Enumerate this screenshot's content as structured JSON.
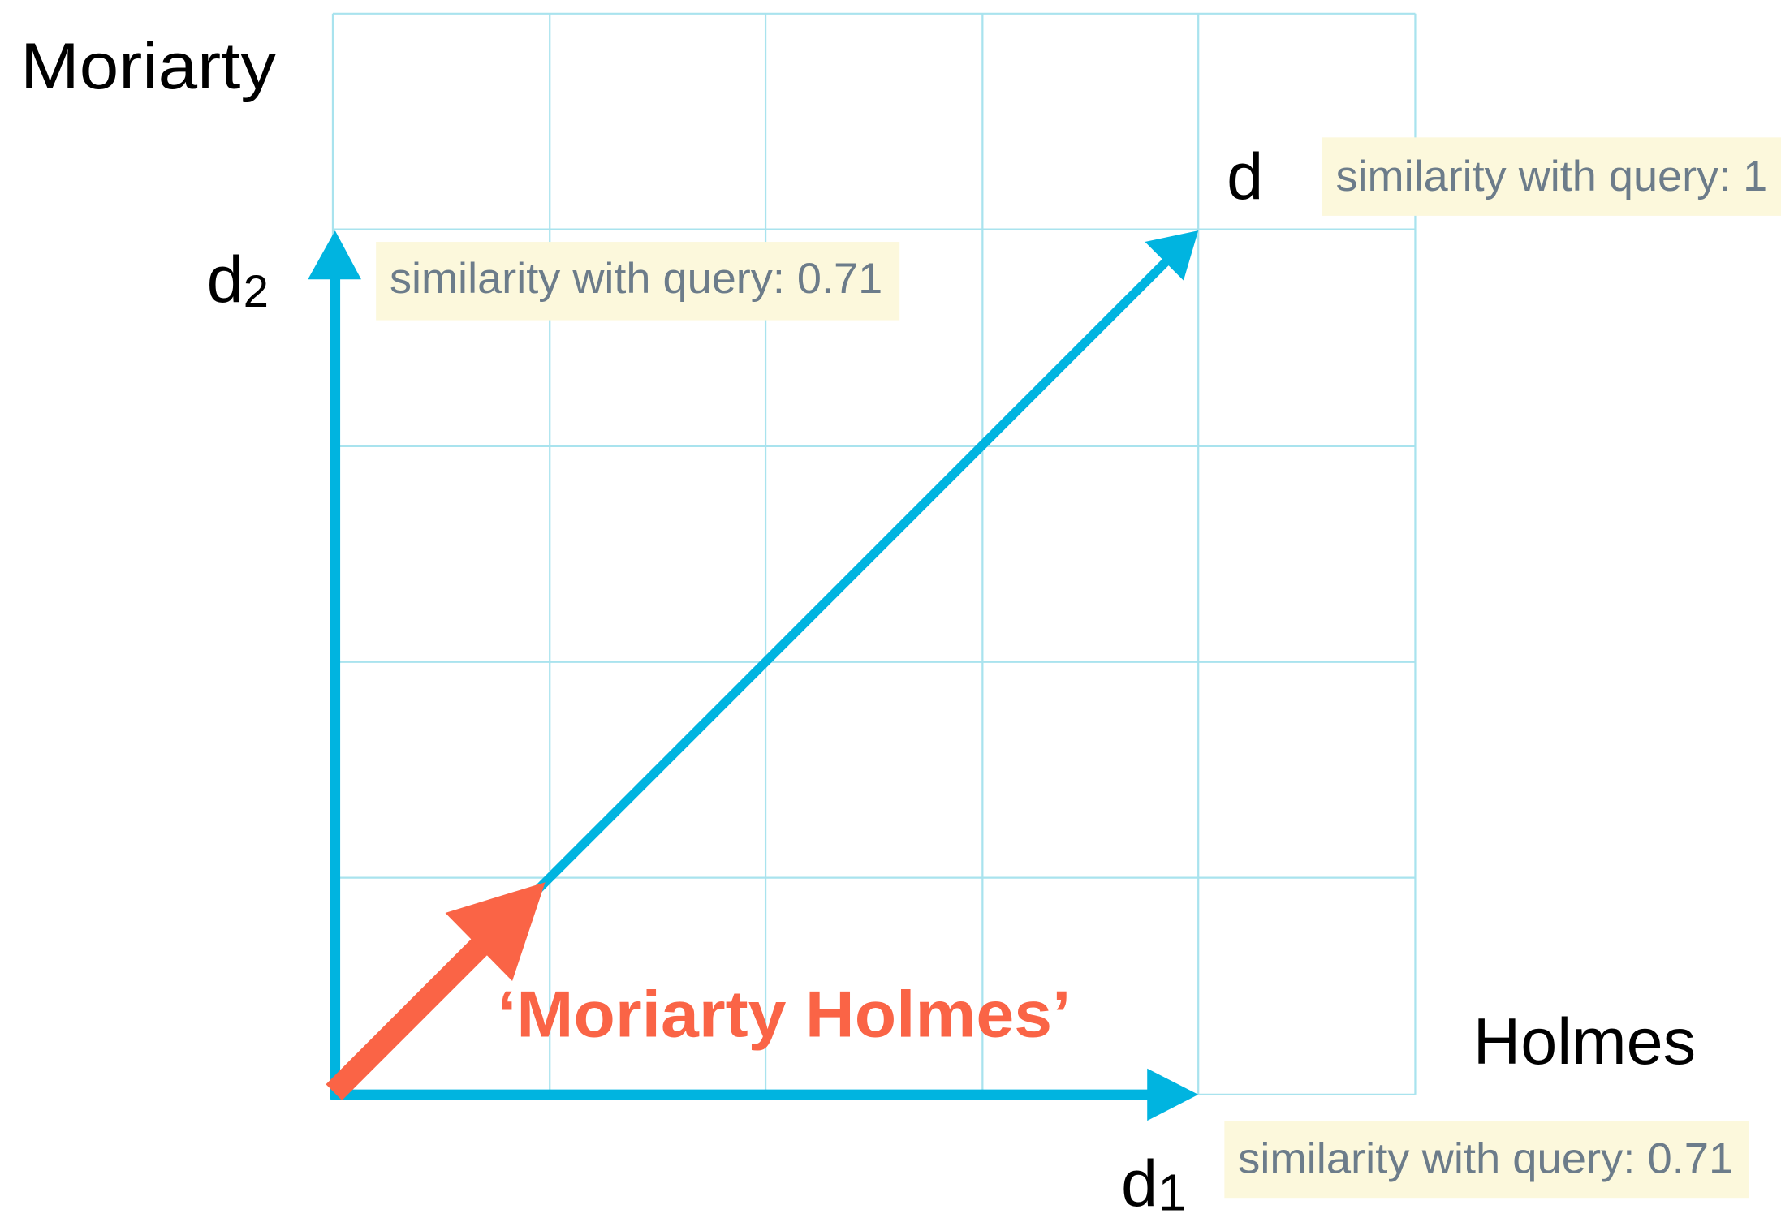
{
  "axes": {
    "y": "Moriarty",
    "x": "Holmes"
  },
  "vectors": [
    {
      "label": "d",
      "subscript": "2",
      "similarity": "similarity with query: 0.71"
    },
    {
      "label": "d",
      "similarity": "similarity with query: 1"
    },
    {
      "label": "d",
      "subscript": "1",
      "similarity": "similarity with query: 0.71"
    }
  ],
  "query": "‘Moriarty Holmes’"
}
